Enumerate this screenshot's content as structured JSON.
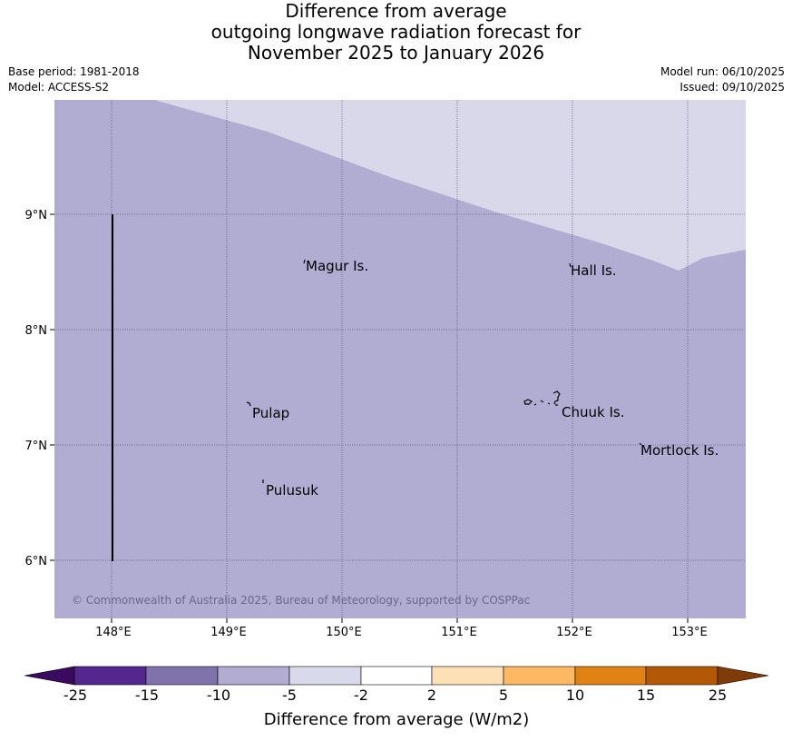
{
  "title": {
    "line1": "Difference from average",
    "line2": "outgoing longwave radiation forecast for",
    "line3": "November 2025 to January 2026"
  },
  "meta": {
    "base_period": "Base period: 1981-2018",
    "model": "Model: ACCESS-S2",
    "model_run": "Model run: 06/10/2025",
    "issued": "Issued: 09/10/2025"
  },
  "map": {
    "lat_ticks": [
      "9°N",
      "8°N",
      "7°N",
      "6°N"
    ],
    "lon_ticks": [
      "148°E",
      "149°E",
      "150°E",
      "151°E",
      "152°E",
      "153°E"
    ],
    "places": {
      "magur": "Magur Is.",
      "hall": "Hall Is.",
      "pulap": "Pulap",
      "chuuk": "Chuuk Is.",
      "mortlock": "Mortlock Is.",
      "pulusuk": "Pulusuk"
    },
    "copyright": "© Commonwealth of Australia 2025, Bureau of Meteorology, supported by COSPPac",
    "fill_colors": {
      "main": "#b1acd2",
      "upper": "#d8d8ea"
    }
  },
  "colorbar": {
    "title": "Difference from average (W/m2)",
    "ticks": [
      "-25",
      "-15",
      "-10",
      "-5",
      "-2",
      "2",
      "5",
      "10",
      "15",
      "25"
    ],
    "colors": {
      "extend_low": "#3a0a5e",
      "c1": "#54278f",
      "c2": "#8073ac",
      "c3": "#b2abd2",
      "c4": "#d8daeb",
      "c5": "#ffffff",
      "c6": "#fee0b6",
      "c7": "#fdb863",
      "c8": "#e08214",
      "c9": "#b35806",
      "extend_high": "#7f3b08"
    }
  }
}
